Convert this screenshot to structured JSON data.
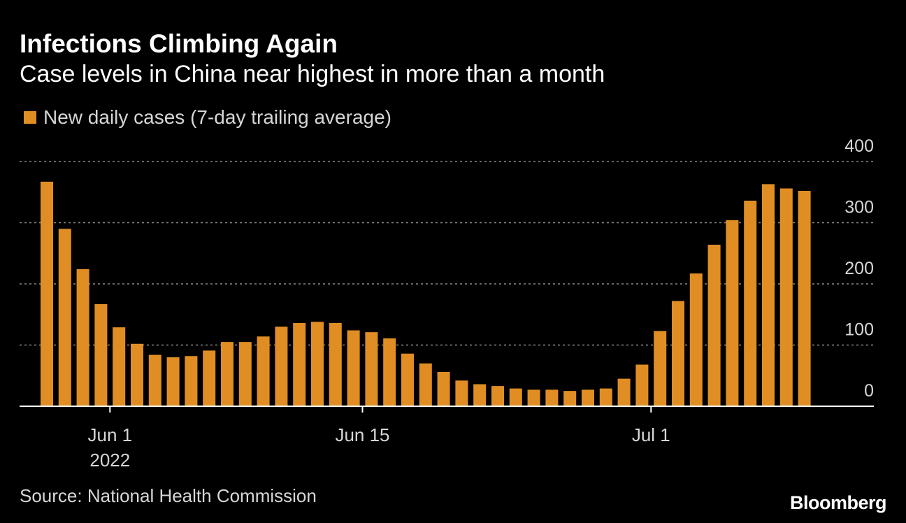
{
  "chart_data": {
    "type": "bar",
    "title": "Infections Climbing Again",
    "subtitle": "Case levels in China near highest in more than a month",
    "legend": [
      "New daily cases (7-day trailing average)"
    ],
    "legend_placement": "top-left",
    "xlabel": "",
    "ylabel": "",
    "ylim": [
      0,
      400
    ],
    "yticks": [
      0,
      100,
      200,
      300,
      400
    ],
    "ytick_labels": [
      "0",
      "100",
      "200",
      "300",
      "400"
    ],
    "y_axis_side": "right",
    "grid": true,
    "xtick_labels": [
      {
        "label": "Jun 1",
        "sublabel": "2022",
        "category_index": 3.5
      },
      {
        "label": "Jun 15",
        "sublabel": "",
        "category_index": 17.5
      },
      {
        "label": "Jul 1",
        "sublabel": "",
        "category_index": 33.5
      }
    ],
    "series": [
      {
        "name": "New daily cases (7-day trailing average)",
        "color": "#e08e24",
        "values": [
          367,
          290,
          224,
          167,
          129,
          102,
          84,
          80,
          82,
          91,
          105,
          105,
          114,
          130,
          136,
          138,
          136,
          124,
          121,
          111,
          86,
          70,
          56,
          42,
          36,
          33,
          29,
          27,
          27,
          25,
          27,
          29,
          45,
          68,
          123,
          172,
          217,
          264,
          304,
          336,
          363,
          356,
          352
        ]
      }
    ]
  },
  "source": "Source: National Health Commission",
  "brand": "Bloomberg",
  "colors": {
    "background": "#000000",
    "bar": "#e08e24",
    "text": "#ffffff",
    "muted_text": "#d6d6d6",
    "grid": "#8c8c8c",
    "axis": "#ffffff"
  }
}
